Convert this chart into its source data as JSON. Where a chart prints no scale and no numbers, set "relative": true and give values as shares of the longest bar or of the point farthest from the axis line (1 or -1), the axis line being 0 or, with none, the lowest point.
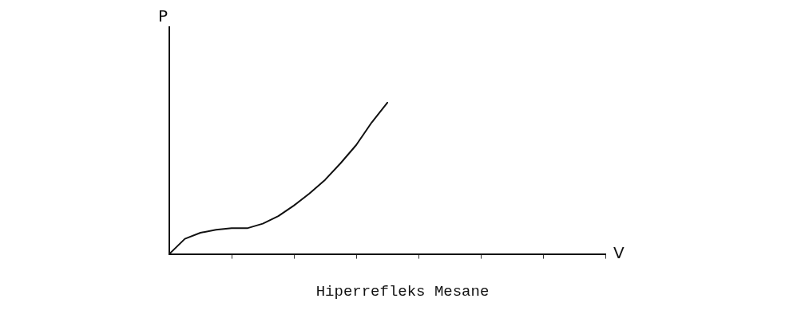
{
  "chart_data": {
    "type": "line",
    "title": "Hiperrefleks Mesane",
    "xlabel": "V",
    "ylabel": "P",
    "relative": true,
    "categories": [
      null,
      null,
      null,
      null,
      null,
      null,
      null,
      null,
      null,
      null,
      null,
      null,
      null,
      null,
      null,
      null,
      null,
      null,
      null,
      null,
      null,
      null,
      null,
      null,
      null,
      null,
      null,
      null,
      null
    ],
    "series": [
      {
        "color": "#111111",
        "values": [
          0,
          0.1,
          0.14,
          0.16,
          0.17,
          0.17,
          0.2,
          0.25,
          0.32,
          0.4,
          0.49,
          0.6,
          0.72,
          0.87,
          1,
          null,
          null,
          null,
          null,
          null,
          null,
          null,
          null,
          null,
          null,
          null,
          null,
          null,
          null
        ]
      }
    ],
    "grid": false,
    "legend": false,
    "marker": "none",
    "line_style": "solid"
  }
}
